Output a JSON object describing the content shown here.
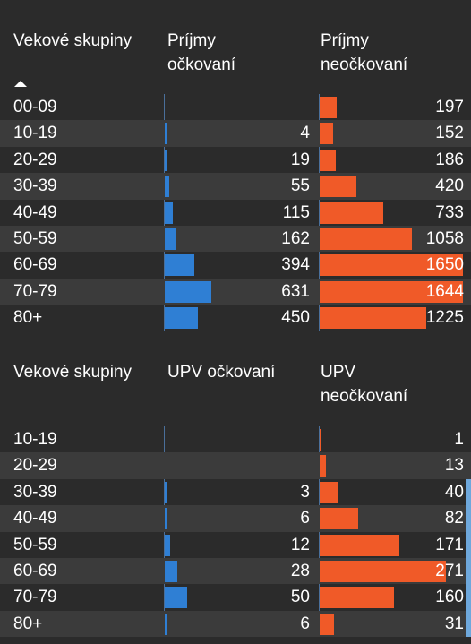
{
  "colors": {
    "background": "#2b2b2b",
    "row_alt": "#3b3b3b",
    "vaccinated_bar": "#2f7fd4",
    "unvaccinated_bar": "#f05a28"
  },
  "icons": {
    "sort": "sort-ascending-icon"
  },
  "table_prijmy": {
    "headers": [
      "Vekové skupiny",
      "Príjmy\nočkovaní",
      "Príjmy\nneočkovaní"
    ],
    "rows": [
      {
        "group": "00-09",
        "vaccinated": "",
        "unvaccinated": "197"
      },
      {
        "group": "10-19",
        "vaccinated": "4",
        "unvaccinated": "152"
      },
      {
        "group": "20-29",
        "vaccinated": "19",
        "unvaccinated": "186"
      },
      {
        "group": "30-39",
        "vaccinated": "55",
        "unvaccinated": "420"
      },
      {
        "group": "40-49",
        "vaccinated": "115",
        "unvaccinated": "733"
      },
      {
        "group": "50-59",
        "vaccinated": "162",
        "unvaccinated": "1058"
      },
      {
        "group": "60-69",
        "vaccinated": "394",
        "unvaccinated": "1650"
      },
      {
        "group": "70-79",
        "vaccinated": "631",
        "unvaccinated": "1644"
      },
      {
        "group": "80+",
        "vaccinated": "450",
        "unvaccinated": "1225"
      }
    ]
  },
  "table_upv": {
    "headers": [
      "Vekové skupiny",
      "UPV očkovaní",
      "UPV\nneočkovaní"
    ],
    "rows": [
      {
        "group": "10-19",
        "vaccinated": "",
        "unvaccinated": "1"
      },
      {
        "group": "20-29",
        "vaccinated": "",
        "unvaccinated": "13"
      },
      {
        "group": "30-39",
        "vaccinated": "3",
        "unvaccinated": "40"
      },
      {
        "group": "40-49",
        "vaccinated": "6",
        "unvaccinated": "82"
      },
      {
        "group": "50-59",
        "vaccinated": "12",
        "unvaccinated": "171"
      },
      {
        "group": "60-69",
        "vaccinated": "28",
        "unvaccinated": "271"
      },
      {
        "group": "70-79",
        "vaccinated": "50",
        "unvaccinated": "160"
      },
      {
        "group": "80+",
        "vaccinated": "6",
        "unvaccinated": "31"
      }
    ]
  }
}
